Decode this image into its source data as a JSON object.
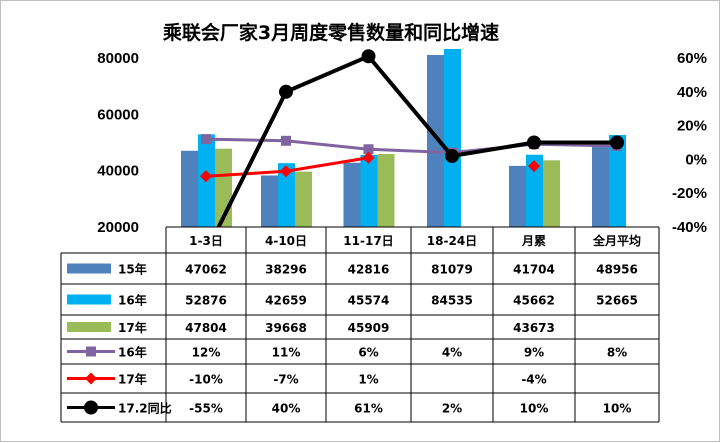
{
  "chart_data": {
    "type": "bar",
    "title": "乘联会厂家3月周度零售数量和同比增速",
    "categories": [
      "1-3日",
      "4-10日",
      "11-17日",
      "18-24日",
      "月累",
      "全月平均"
    ],
    "y_left": {
      "ticks": [
        "80000",
        "60000",
        "40000",
        "20000"
      ],
      "ylim": [
        20000,
        80000
      ]
    },
    "y_right": {
      "ticks": [
        "60%",
        "40%",
        "20%",
        "0%",
        "-20%",
        "-40%"
      ],
      "ylim": [
        -40,
        60
      ]
    },
    "bar_series": [
      {
        "name": "15年",
        "color": "#4f81bd",
        "values": [
          47062,
          38296,
          42816,
          81079,
          41704,
          48956
        ],
        "labels": [
          "47062",
          "38296",
          "42816",
          "81079",
          "41704",
          "48956"
        ]
      },
      {
        "name": "16年",
        "color": "#00b0f0",
        "values": [
          52876,
          42659,
          45574,
          84535,
          45662,
          52665
        ],
        "labels": [
          "52876",
          "42659",
          "45574",
          "84535",
          "45662",
          "52665"
        ]
      },
      {
        "name": "17年",
        "color": "#9bbb59",
        "values": [
          47804,
          39668,
          45909,
          null,
          43673,
          null
        ],
        "labels": [
          "47804",
          "39668",
          "45909",
          "",
          "43673",
          ""
        ]
      }
    ],
    "line_series": [
      {
        "name": "16年",
        "color": "#8064a2",
        "marker": "square",
        "values": [
          12,
          11,
          6,
          4,
          9,
          8
        ],
        "labels": [
          "12%",
          "11%",
          "6%",
          "4%",
          "9%",
          "8%"
        ]
      },
      {
        "name": "17年",
        "color": "#ff0000",
        "marker": "diamond",
        "values": [
          -10,
          -7,
          1,
          null,
          -4,
          null
        ],
        "labels": [
          "-10%",
          "-7%",
          "1%",
          "",
          "-4%",
          ""
        ]
      },
      {
        "name": "17.2同比",
        "color": "#000000",
        "marker": "circle",
        "values": [
          -55,
          40,
          61,
          2,
          10,
          10
        ],
        "labels": [
          "-55%",
          "40%",
          "61%",
          "2%",
          "10%",
          "10%"
        ]
      }
    ]
  }
}
